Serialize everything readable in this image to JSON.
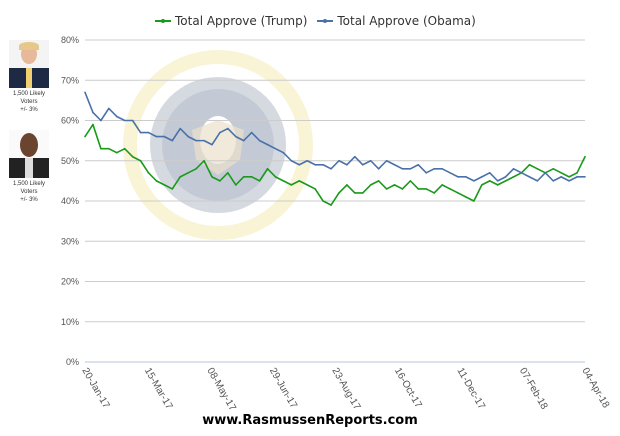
{
  "candidates": [
    {
      "name": "Trump",
      "caption_lines": [
        "1,500 Likely",
        "Voters",
        "+/- 3%"
      ]
    },
    {
      "name": "Obama",
      "caption_lines": [
        "1,500 Likely",
        "Voters",
        "+/- 3%"
      ]
    }
  ],
  "footer": "www.RasmussenReports.com",
  "chart_data": {
    "type": "line",
    "title": "",
    "xlabel": "",
    "ylabel": "",
    "ylim": [
      0,
      80
    ],
    "y_ticks": [
      "0%",
      "10%",
      "20%",
      "30%",
      "40%",
      "50%",
      "60%",
      "70%",
      "80%"
    ],
    "x_ticks": [
      "20-Jan-17",
      "15-Mar-17",
      "08-May-17",
      "29-Jun-17",
      "23-Aug-17",
      "16-Oct-17",
      "11-Dec-17",
      "07-Feb-18",
      "04-Apr-18"
    ],
    "grid": true,
    "legend": "top-center",
    "series": [
      {
        "name": "Total Approve (Trump)",
        "color": "#1a9a1a",
        "values": [
          56,
          59,
          53,
          53,
          52,
          53,
          51,
          50,
          47,
          45,
          44,
          43,
          46,
          47,
          48,
          50,
          46,
          45,
          47,
          44,
          46,
          46,
          45,
          48,
          46,
          45,
          44,
          45,
          44,
          43,
          40,
          39,
          42,
          44,
          42,
          42,
          44,
          45,
          43,
          44,
          43,
          45,
          43,
          43,
          42,
          44,
          43,
          42,
          41,
          40,
          44,
          45,
          44,
          45,
          46,
          47,
          49,
          48,
          47,
          48,
          47,
          46,
          47,
          51
        ]
      },
      {
        "name": "Total Approve (Obama)",
        "color": "#4a72a8",
        "values": [
          67,
          62,
          60,
          63,
          61,
          60,
          60,
          57,
          57,
          56,
          56,
          55,
          58,
          56,
          55,
          55,
          54,
          57,
          58,
          56,
          55,
          57,
          55,
          54,
          53,
          52,
          50,
          49,
          50,
          49,
          49,
          48,
          50,
          49,
          51,
          49,
          50,
          48,
          50,
          49,
          48,
          48,
          49,
          47,
          48,
          48,
          47,
          46,
          46,
          45,
          46,
          47,
          45,
          46,
          48,
          47,
          46,
          45,
          47,
          45,
          46,
          45,
          46,
          46
        ]
      }
    ]
  }
}
